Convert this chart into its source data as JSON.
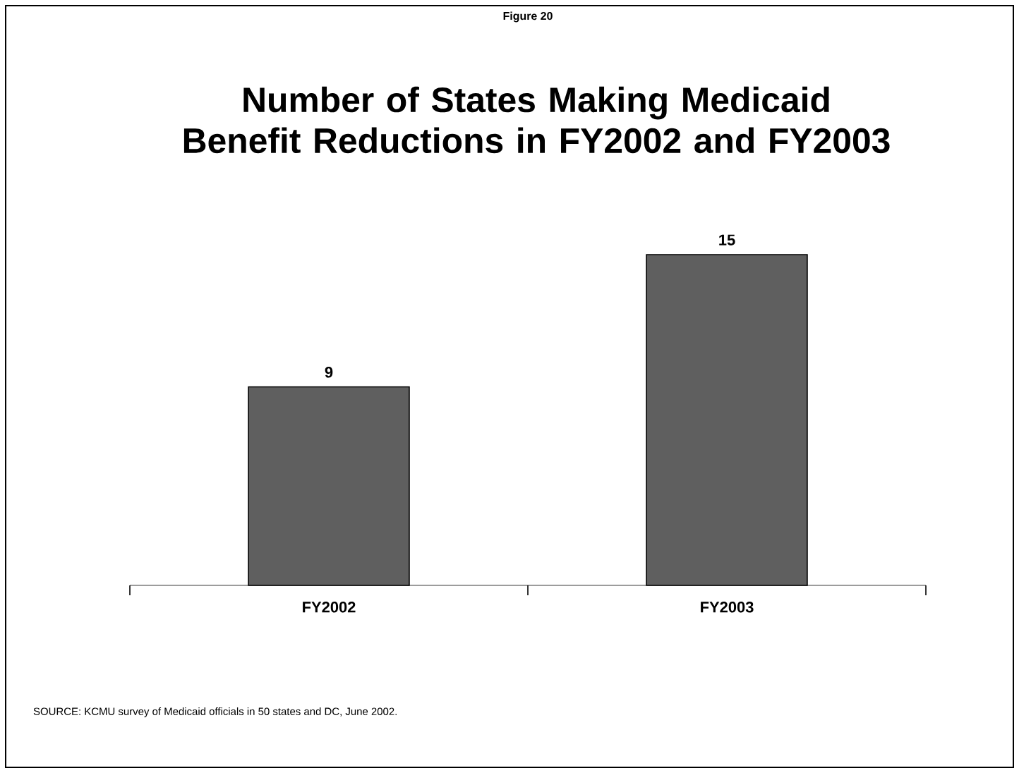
{
  "chart_data": {
    "type": "bar",
    "title": "Number of States Making Medicaid Benefit Reductions in FY2002 and FY2003",
    "categories": [
      "FY2002",
      "FY2003"
    ],
    "values": [
      9,
      15
    ],
    "color": "#5f5f5f",
    "data_labels": true,
    "annotations": [
      "Figure 20",
      "SOURCE: KCMU survey of Medicaid officials in 50 states and DC, June 2002."
    ]
  }
}
